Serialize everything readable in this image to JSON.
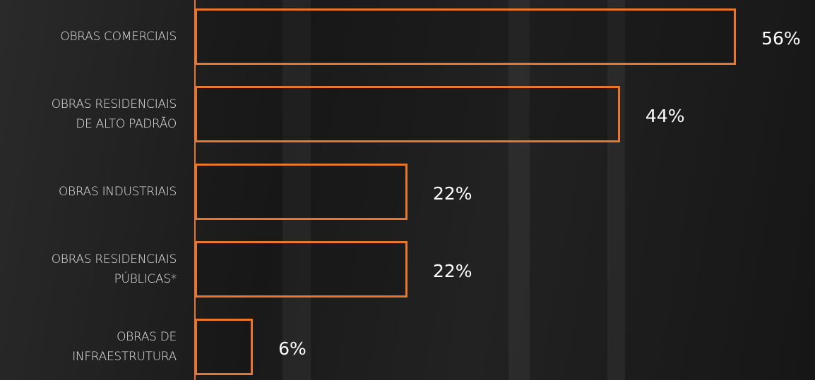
{
  "chart_data": {
    "type": "bar",
    "orientation": "horizontal",
    "categories": [
      "OBRAS COMERCIAIS",
      "OBRAS RESIDENCIAIS\nDE ALTO PADRÃO",
      "OBRAS INDUSTRIAIS",
      "OBRAS RESIDENCIAIS\nPÚBLICAS*",
      "OBRAS DE\nINFRAESTRUTURA"
    ],
    "values": [
      56,
      44,
      22,
      22,
      6
    ],
    "value_labels": [
      "56%",
      "44%",
      "22%",
      "22%",
      "6%"
    ],
    "color": "#e8762b"
  }
}
